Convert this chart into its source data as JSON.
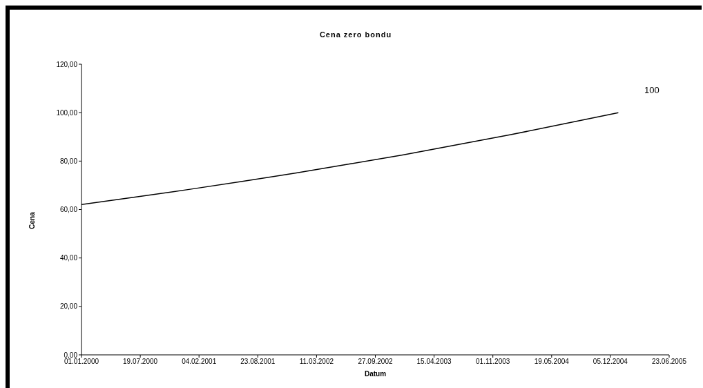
{
  "chart_data": {
    "type": "line",
    "title": "Cena zero bondu",
    "xlabel": "Datum",
    "ylabel": "Cena",
    "x": [
      "2000-01-01",
      "2000-07-01",
      "2001-01-01",
      "2001-07-01",
      "2002-01-01",
      "2002-07-01",
      "2003-01-01",
      "2003-07-01",
      "2004-01-01",
      "2004-07-01",
      "2005-01-01"
    ],
    "series": [
      {
        "color": "#000000",
        "values": [
          62.1,
          65.1,
          68.3,
          71.6,
          75.1,
          78.8,
          82.6,
          86.7,
          90.9,
          95.4,
          100
        ]
      }
    ],
    "ylim": [
      0,
      120
    ],
    "yticks": [
      {
        "value": 0,
        "label": "0,00"
      },
      {
        "value": 20,
        "label": "20,00"
      },
      {
        "value": 40,
        "label": "40,00"
      },
      {
        "value": 60,
        "label": "60,00"
      },
      {
        "value": 80,
        "label": "80,00"
      },
      {
        "value": 100,
        "label": "100,00"
      },
      {
        "value": 120,
        "label": "120,00"
      }
    ],
    "xlim": [
      "2000-01-01",
      "2005-06-23"
    ],
    "xticks": [
      {
        "value": "2000-01-01",
        "label": "01.01.2000"
      },
      {
        "value": "2000-07-19",
        "label": "19.07.2000"
      },
      {
        "value": "2001-02-04",
        "label": "04.02.2001"
      },
      {
        "value": "2001-08-23",
        "label": "23.08.2001"
      },
      {
        "value": "2002-03-11",
        "label": "11.03.2002"
      },
      {
        "value": "2002-09-27",
        "label": "27.09.2002"
      },
      {
        "value": "2003-04-15",
        "label": "15.04.2003"
      },
      {
        "value": "2003-11-01",
        "label": "01.11.2003"
      },
      {
        "value": "2004-05-19",
        "label": "19.05.2004"
      },
      {
        "value": "2004-12-05",
        "label": "05.12.2004"
      },
      {
        "value": "2005-06-23",
        "label": "23.06.2005"
      }
    ],
    "annotations": [
      "100"
    ],
    "grid": false,
    "marker": "none",
    "line_style": "solid"
  }
}
